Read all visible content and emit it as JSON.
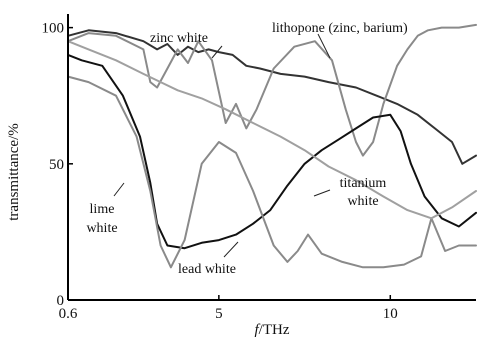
{
  "chart_data": {
    "type": "line",
    "xlabel": "f/THz",
    "xlabel_italic_part": "f",
    "xlabel_rest": "/THz",
    "ylabel": "transmittance/%",
    "xlim": [
      0.6,
      12.5
    ],
    "ylim": [
      0,
      105
    ],
    "x_ticks": [
      {
        "value": 0.6,
        "label": "0.6"
      },
      {
        "value": 5,
        "label": "5"
      },
      {
        "value": 10,
        "label": "10"
      }
    ],
    "y_ticks": [
      {
        "value": 0,
        "label": "0"
      },
      {
        "value": 50,
        "label": "50"
      },
      {
        "value": 100,
        "label": "100"
      }
    ],
    "grid": false,
    "legend": "none",
    "series": [
      {
        "name": "zinc white",
        "color": "#333333",
        "x": [
          0.6,
          1.2,
          2.0,
          2.8,
          3.2,
          3.5,
          3.8,
          4.1,
          4.4,
          4.7,
          5.0,
          5.4,
          5.8,
          6.2,
          6.8,
          7.5,
          8.2,
          9.0,
          9.6,
          10.2,
          10.8,
          11.3,
          11.8,
          12.1,
          12.5
        ],
        "y": [
          97,
          99,
          98,
          95,
          92,
          94,
          90,
          93,
          91,
          92,
          91,
          90,
          86,
          85,
          83,
          82,
          80,
          78,
          75,
          72,
          68,
          63,
          58,
          50,
          53
        ]
      },
      {
        "name": "lithopone (zinc, barium)",
        "color": "#8a8a8a",
        "x": [
          0.6,
          1.2,
          2.0,
          2.8,
          3.0,
          3.2,
          3.5,
          3.8,
          4.1,
          4.4,
          4.8,
          5.2,
          5.5,
          5.8,
          6.1,
          6.6,
          7.2,
          7.8,
          8.3,
          8.7,
          9.0,
          9.2,
          9.5,
          9.8,
          10.2,
          10.5,
          10.8,
          11.1,
          11.5,
          12.0,
          12.5
        ],
        "y": [
          95,
          98,
          97,
          92,
          80,
          78,
          85,
          92,
          87,
          95,
          88,
          65,
          72,
          63,
          70,
          85,
          93,
          95,
          88,
          70,
          58,
          53,
          58,
          72,
          86,
          92,
          97,
          99,
          100,
          100,
          101
        ]
      },
      {
        "name": "lead white",
        "color": "#111111",
        "x": [
          0.6,
          1.0,
          1.6,
          2.2,
          2.7,
          3.0,
          3.2,
          3.5,
          4.0,
          4.5,
          5.0,
          5.5,
          6.0,
          6.5,
          7.0,
          7.5,
          8.0,
          8.5,
          9.0,
          9.5,
          10.0,
          10.3,
          10.6,
          11.0,
          11.5,
          12.0,
          12.5
        ],
        "y": [
          90,
          88,
          86,
          75,
          60,
          43,
          28,
          20,
          19,
          21,
          22,
          24,
          28,
          33,
          42,
          50,
          55,
          59,
          63,
          67,
          68,
          62,
          50,
          38,
          30,
          27,
          32
        ]
      },
      {
        "name": "titanium white",
        "color": "#8a8a8a",
        "x": [
          0.6,
          1.2,
          2.0,
          2.6,
          3.0,
          3.3,
          3.6,
          4.0,
          4.5,
          5.0,
          5.5,
          6.0,
          6.6,
          7.0,
          7.3,
          7.6,
          8.0,
          8.6,
          9.2,
          9.8,
          10.4,
          10.9,
          11.2,
          11.6,
          12.0,
          12.5
        ],
        "y": [
          82,
          80,
          75,
          60,
          40,
          20,
          12,
          22,
          50,
          58,
          54,
          40,
          20,
          14,
          18,
          24,
          17,
          14,
          12,
          12,
          13,
          16,
          30,
          18,
          20,
          20
        ]
      },
      {
        "name": "lime white",
        "color": "#a0a0a0",
        "x": [
          0.6,
          1.2,
          2.0,
          2.8,
          3.3,
          3.8,
          4.5,
          5.2,
          6.0,
          6.8,
          7.5,
          8.2,
          9.0,
          9.8,
          10.5,
          11.2,
          11.8,
          12.5
        ],
        "y": [
          95,
          92,
          88,
          83,
          80,
          77,
          74,
          70,
          65,
          60,
          55,
          49,
          44,
          38,
          33,
          30,
          34,
          40
        ]
      }
    ],
    "annotations": [
      {
        "text": "zinc white"
      },
      {
        "text": "lithopone (zinc, barium)"
      },
      {
        "text": "lime"
      },
      {
        "text": "white"
      },
      {
        "text": "lead white"
      },
      {
        "text": "titanium"
      },
      {
        "text": "white"
      }
    ]
  }
}
